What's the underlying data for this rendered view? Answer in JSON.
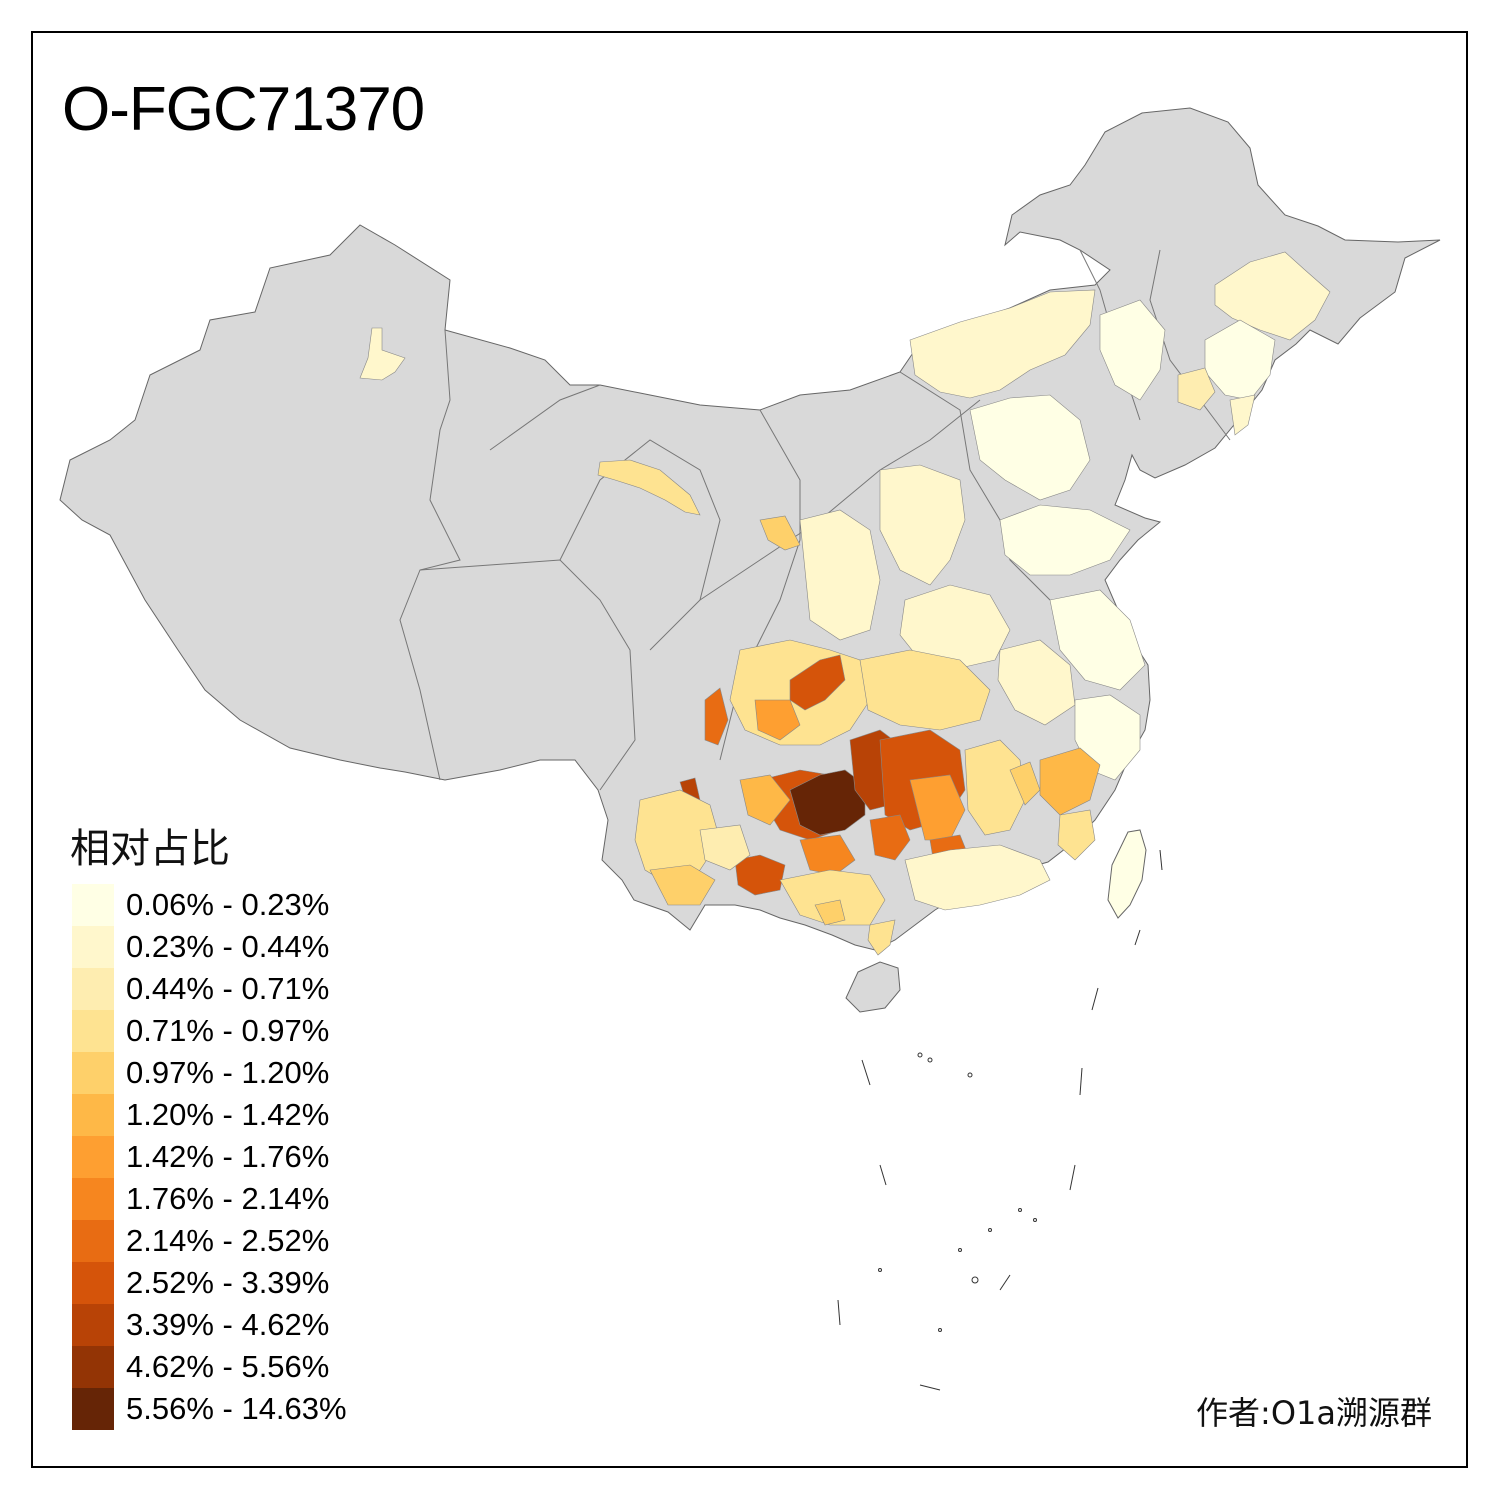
{
  "map": {
    "title": "O-FGC71370",
    "region": "China",
    "base_color": "#d9d9d9"
  },
  "legend": {
    "title": "相对占比",
    "items": [
      {
        "label": "0.06% - 0.23%",
        "color": "#ffffe5"
      },
      {
        "label": "0.23% - 0.44%",
        "color": "#fff7cc"
      },
      {
        "label": "0.44% - 0.71%",
        "color": "#feedb0"
      },
      {
        "label": "0.71% - 0.97%",
        "color": "#fee391"
      },
      {
        "label": "0.97% - 1.20%",
        "color": "#fed06a"
      },
      {
        "label": "1.20% - 1.42%",
        "color": "#feb847"
      },
      {
        "label": "1.42% - 1.76%",
        "color": "#fe9f31"
      },
      {
        "label": "1.76% - 2.14%",
        "color": "#f6861f"
      },
      {
        "label": "2.14% - 2.52%",
        "color": "#e86c13"
      },
      {
        "label": "2.52% - 3.39%",
        "color": "#d5540a"
      },
      {
        "label": "3.39% - 4.62%",
        "color": "#b84306"
      },
      {
        "label": "4.62% - 5.56%",
        "color": "#933405"
      },
      {
        "label": "5.56% - 14.63%",
        "color": "#662506"
      }
    ]
  },
  "author": "作者:O1a溯源群"
}
